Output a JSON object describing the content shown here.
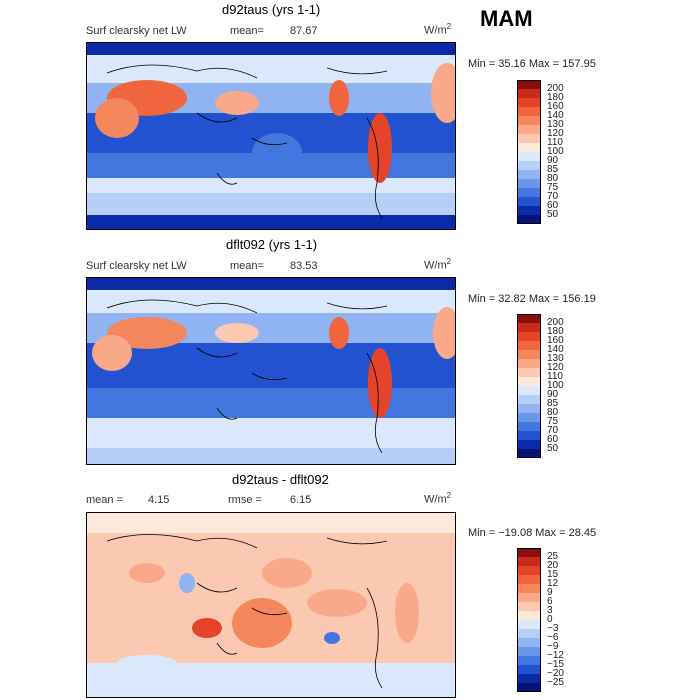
{
  "season": "MAM",
  "panels": [
    {
      "title": "d92taus (yrs 1-1)",
      "left_label": "Surf clearsky net LW",
      "stat_label": "mean=",
      "stat_value": "87.67",
      "units": "W/m",
      "units_sup": "2",
      "min_max": "Min =  35.16 Max = 157.95",
      "colorbar_labels": [
        "200",
        "180",
        "160",
        "140",
        "130",
        "120",
        "110",
        "100",
        "90",
        "85",
        "80",
        "75",
        "70",
        "60",
        "50"
      ],
      "colorbar_colors": [
        "#8b0d0d",
        "#c92a1a",
        "#e6442a",
        "#f0643e",
        "#f5875c",
        "#f9a98a",
        "#fbc9b1",
        "#fde8dc",
        "#dbe8fb",
        "#b6cff7",
        "#90b4f1",
        "#6a96ea",
        "#4476e0",
        "#2352d0",
        "#0b2aa8",
        "#06127a"
      ],
      "map_type": "absolute"
    },
    {
      "title": "dflt092 (yrs 1-1)",
      "left_label": "Surf clearsky net LW",
      "stat_label": "mean=",
      "stat_value": "83.53",
      "units": "W/m",
      "units_sup": "2",
      "min_max": "Min =  32.82 Max = 156.19",
      "colorbar_labels": [
        "200",
        "180",
        "160",
        "140",
        "130",
        "120",
        "110",
        "100",
        "90",
        "85",
        "80",
        "75",
        "70",
        "60",
        "50"
      ],
      "colorbar_colors": [
        "#8b0d0d",
        "#c92a1a",
        "#e6442a",
        "#f0643e",
        "#f5875c",
        "#f9a98a",
        "#fbc9b1",
        "#fde8dc",
        "#dbe8fb",
        "#b6cff7",
        "#90b4f1",
        "#6a96ea",
        "#4476e0",
        "#2352d0",
        "#0b2aa8",
        "#06127a"
      ],
      "map_type": "absolute"
    },
    {
      "title": "d92taus - dflt092",
      "left_label": "mean =",
      "left_value": "4.15",
      "stat_label": "rmse =",
      "stat_value": "6.15",
      "units": "W/m",
      "units_sup": "2",
      "min_max": "Min = −19.08 Max =  28.45",
      "colorbar_labels": [
        "25",
        "20",
        "15",
        "12",
        "9",
        "6",
        "3",
        "0",
        "−3",
        "−6",
        "−9",
        "−12",
        "−15",
        "−20",
        "−25"
      ],
      "colorbar_colors": [
        "#8b0d0d",
        "#c92a1a",
        "#e6442a",
        "#f0643e",
        "#f5875c",
        "#f9a98a",
        "#fbc9b1",
        "#fde8dc",
        "#dbe8fb",
        "#b6cff7",
        "#90b4f1",
        "#6a96ea",
        "#4476e0",
        "#2352d0",
        "#0b2aa8",
        "#06127a"
      ],
      "map_type": "difference"
    }
  ],
  "chart_data": [
    {
      "type": "heatmap",
      "title": "d92taus (yrs 1-1)",
      "variable": "Surf clearsky net LW",
      "units": "W/m2",
      "mean": 87.67,
      "min": 35.16,
      "max": 157.95,
      "levels": [
        50,
        60,
        70,
        75,
        80,
        85,
        90,
        100,
        110,
        120,
        130,
        140,
        160,
        180,
        200
      ]
    },
    {
      "type": "heatmap",
      "title": "dflt092 (yrs 1-1)",
      "variable": "Surf clearsky net LW",
      "units": "W/m2",
      "mean": 83.53,
      "min": 32.82,
      "max": 156.19,
      "levels": [
        50,
        60,
        70,
        75,
        80,
        85,
        90,
        100,
        110,
        120,
        130,
        140,
        160,
        180,
        200
      ]
    },
    {
      "type": "heatmap",
      "title": "d92taus - dflt092",
      "units": "W/m2",
      "mean": 4.15,
      "rmse": 6.15,
      "min": -19.08,
      "max": 28.45,
      "levels": [
        -25,
        -20,
        -15,
        -12,
        -9,
        -6,
        -3,
        0,
        3,
        6,
        9,
        12,
        15,
        20,
        25
      ]
    }
  ]
}
